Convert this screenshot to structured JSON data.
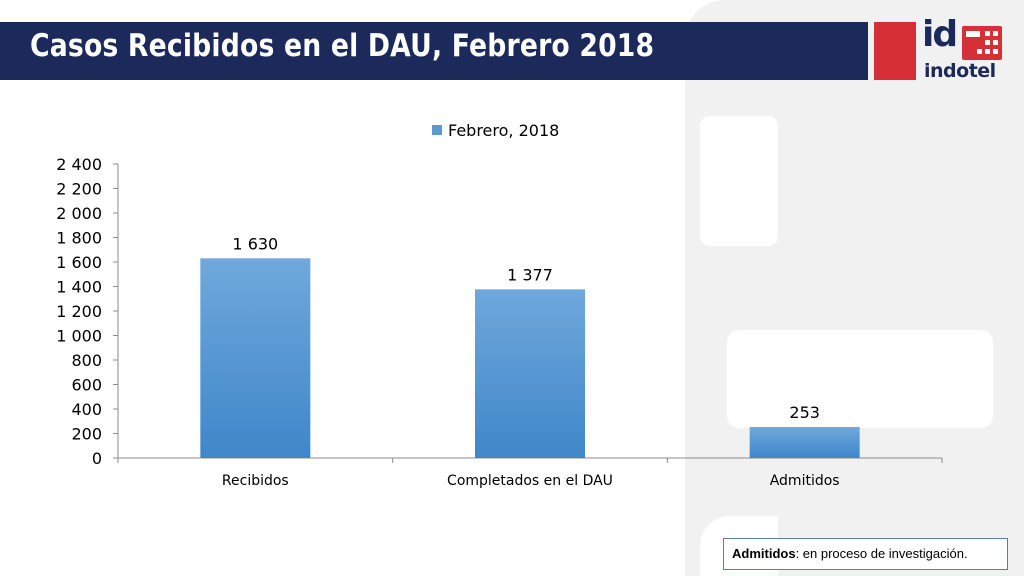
{
  "slide": {
    "title": "Casos Recibidos en el DAU, Febrero 2018"
  },
  "logo": {
    "mark": "id",
    "wordmark": "indotel"
  },
  "note": {
    "term": "Admitidos",
    "text": ": en proceso de investigación."
  },
  "colors": {
    "header": "#1b2a5a",
    "logo_red": "#d62f35",
    "bar": "#5b9bd5"
  },
  "chart_data": {
    "type": "bar",
    "categories": [
      "Recibidos",
      "Completados en el DAU",
      "Admitidos"
    ],
    "series": [
      {
        "name": "Febrero, 2018",
        "values": [
          1630,
          1377,
          253
        ]
      }
    ],
    "value_labels": [
      "1 630",
      "1 377",
      "253"
    ],
    "yticks": [
      "0",
      "200",
      "400",
      "600",
      "800",
      "1 000",
      "1 200",
      "1 400",
      "1 600",
      "1 800",
      "2 000",
      "2 200",
      "2 400"
    ],
    "ylim": [
      0,
      2400
    ],
    "legend": "top-center",
    "grid": false
  }
}
